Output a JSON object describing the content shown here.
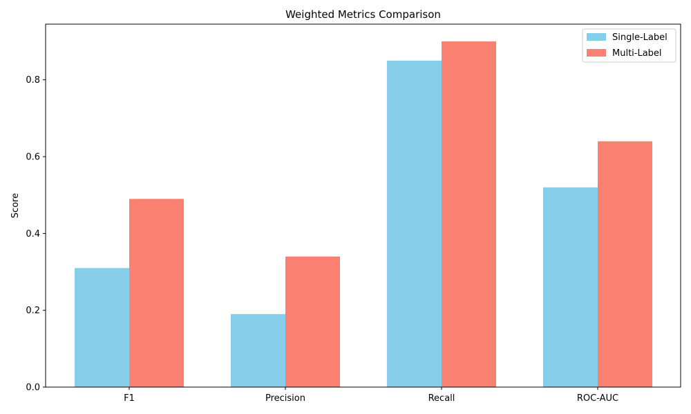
{
  "chart_data": {
    "type": "bar",
    "title": "Weighted Metrics Comparison",
    "xlabel": "",
    "ylabel": "Score",
    "categories": [
      "F1",
      "Precision",
      "Recall",
      "ROC-AUC"
    ],
    "series": [
      {
        "name": "Single-Label",
        "values": [
          0.31,
          0.19,
          0.85,
          0.52
        ],
        "color": "#87CEEB"
      },
      {
        "name": "Multi-Label",
        "values": [
          0.49,
          0.34,
          0.9,
          0.64
        ],
        "color": "#FA8072"
      }
    ],
    "ylim": [
      0,
      0.945
    ],
    "yticks": [
      "0.0",
      "0.2",
      "0.4",
      "0.6",
      "0.8"
    ],
    "grid": false,
    "legend_position": "top-right"
  }
}
